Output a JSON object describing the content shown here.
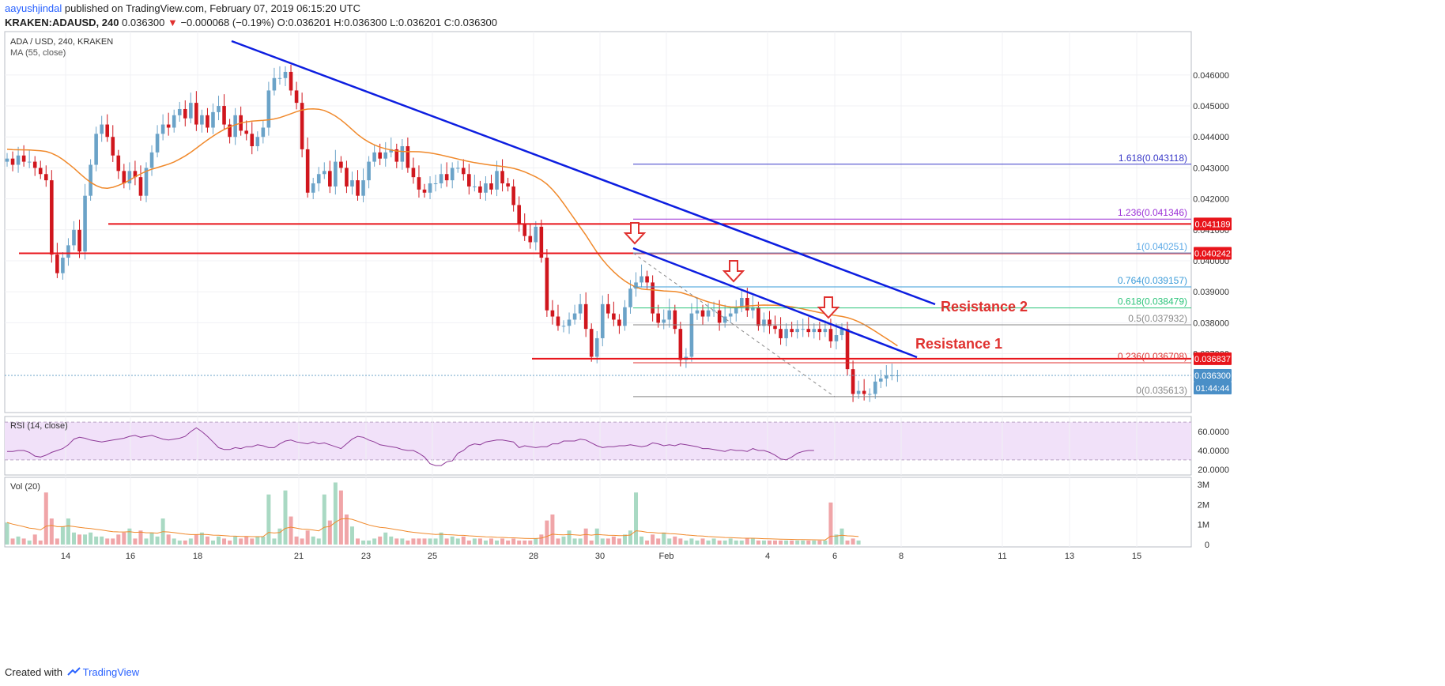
{
  "header": {
    "user": "aayushjindal",
    "published": "published on TradingView.com, February 07, 2019 06:15:20 UTC",
    "symbol": "KRAKEN:ADAUSD, 240",
    "last": "0.036300",
    "arrow": "▼",
    "change": "−0.000068 (−0.19%)",
    "o_label": "O:",
    "o_value": "0.036201",
    "h_label": "H:",
    "h_value": "0.036300",
    "l_label": "L:",
    "l_value": "0.036201",
    "c_label": "C:",
    "c_value": "0.036300"
  },
  "footer": {
    "created": "Created with",
    "brand": "TradingView"
  },
  "colors": {
    "up": "#6ba3c8",
    "down": "#d0161d",
    "ma": "#f0892b",
    "trend": "#0d1ee0",
    "hline": "#e8151b",
    "rsi": "#8e3a98",
    "rsi_band": "#f1e1f9"
  },
  "chart_data": [
    {
      "type": "candlestick",
      "title": "ADA / USD, 240, KRAKEN",
      "indicator": "MA (55, close)",
      "x_ticks": [
        "14",
        "16",
        "18",
        "21",
        "23",
        "25",
        "28",
        "30",
        "Feb",
        "4",
        "6",
        "8",
        "11",
        "13",
        "15"
      ],
      "y_ticks": [
        "0.046000",
        "0.045000",
        "0.044000",
        "0.043000",
        "0.042000",
        "0.041000",
        "0.040000",
        "0.039000",
        "0.038000",
        "0.037000"
      ],
      "ylim": [
        0.0351,
        0.0474
      ],
      "close": [
        0.0433,
        0.0431,
        0.0434,
        0.0432,
        0.0432,
        0.043,
        0.0428,
        0.0426,
        0.0402,
        0.0396,
        0.0401,
        0.0405,
        0.041,
        0.0403,
        0.0421,
        0.0431,
        0.0441,
        0.0444,
        0.044,
        0.0434,
        0.0429,
        0.0425,
        0.0429,
        0.0427,
        0.0421,
        0.043,
        0.0435,
        0.0441,
        0.0444,
        0.0443,
        0.0447,
        0.0449,
        0.0446,
        0.0451,
        0.0444,
        0.0447,
        0.0443,
        0.0448,
        0.045,
        0.0444,
        0.044,
        0.0447,
        0.0442,
        0.0441,
        0.0437,
        0.044,
        0.0443,
        0.0455,
        0.0459,
        0.0459,
        0.0461,
        0.0455,
        0.0451,
        0.0436,
        0.0422,
        0.0425,
        0.0428,
        0.0429,
        0.0424,
        0.0432,
        0.043,
        0.0424,
        0.0426,
        0.0421,
        0.0426,
        0.0432,
        0.0435,
        0.0433,
        0.0435,
        0.0436,
        0.0432,
        0.0437,
        0.043,
        0.0427,
        0.0423,
        0.0422,
        0.0425,
        0.0425,
        0.0428,
        0.0426,
        0.043,
        0.043,
        0.0428,
        0.0424,
        0.0424,
        0.0422,
        0.0425,
        0.0423,
        0.0429,
        0.0425,
        0.0424,
        0.0418,
        0.0412,
        0.0408,
        0.0406,
        0.0411,
        0.0401,
        0.0384,
        0.0382,
        0.0379,
        0.0379,
        0.0381,
        0.0383,
        0.0386,
        0.0378,
        0.0369,
        0.0375,
        0.0386,
        0.0383,
        0.0381,
        0.0379,
        0.0385,
        0.0391,
        0.0393,
        0.0395,
        0.0393,
        0.0383,
        0.038,
        0.0381,
        0.0384,
        0.0378,
        0.0368,
        0.0369,
        0.0383,
        0.0384,
        0.0382,
        0.0384,
        0.0384,
        0.038,
        0.0382,
        0.0383,
        0.0385,
        0.0388,
        0.0384,
        0.0385,
        0.0379,
        0.0381,
        0.0379,
        0.0378,
        0.0375,
        0.0378,
        0.0377,
        0.0378,
        0.0378,
        0.0377,
        0.0378,
        0.0377,
        0.0378,
        0.0374,
        0.0376,
        0.0378,
        0.0365,
        0.0357,
        0.0358,
        0.0357,
        0.0357,
        0.0361,
        0.0362,
        0.0363,
        0.0363,
        0.0363
      ]
    },
    {
      "type": "line",
      "title": "RSI (14, close)",
      "y_ticks": [
        "60.0000",
        "40.0000",
        "20.0000"
      ],
      "ylim": [
        14,
        76
      ],
      "values": [
        39,
        39,
        40,
        40,
        38,
        34,
        33,
        35,
        38,
        40,
        42,
        46,
        52,
        54,
        53,
        51,
        50,
        49,
        50,
        51,
        52,
        53,
        55,
        56,
        54,
        55,
        56,
        54,
        52,
        51,
        52,
        53,
        55,
        60,
        64,
        60,
        55,
        49,
        43,
        41,
        41,
        43,
        42,
        44,
        44,
        46,
        45,
        43,
        43,
        47,
        50,
        51,
        49,
        48,
        47,
        49,
        47,
        48,
        46,
        44,
        42,
        47,
        52,
        55,
        54,
        51,
        49,
        46,
        45,
        44,
        43,
        41,
        40,
        40,
        37,
        33,
        26,
        24,
        24,
        28,
        29,
        37,
        40,
        45,
        47,
        46,
        49,
        50,
        51,
        51,
        50,
        49,
        43,
        45,
        44,
        43,
        44,
        44,
        47,
        47,
        50,
        50,
        50,
        52,
        51,
        48,
        45,
        43,
        44,
        44,
        45,
        45,
        46,
        45,
        44,
        45,
        48,
        47,
        45,
        46,
        45,
        47,
        46,
        45,
        44,
        42,
        42,
        41,
        40,
        39,
        41,
        40,
        40,
        39,
        42,
        40,
        40,
        38,
        35,
        31,
        30,
        33,
        37,
        39,
        40,
        40
      ]
    },
    {
      "type": "bar",
      "title": "Vol (20)",
      "y_ticks": [
        "3M",
        "2M",
        "1M",
        "0"
      ],
      "ylim": [
        0,
        3000000
      ],
      "values": [
        1100000,
        300000,
        400000,
        300000,
        200000,
        500000,
        200000,
        2600000,
        1300000,
        300000,
        900000,
        1300000,
        600000,
        500000,
        500000,
        600000,
        400000,
        400000,
        300000,
        300000,
        500000,
        600000,
        800000,
        300000,
        700000,
        300000,
        600000,
        400000,
        1300000,
        500000,
        300000,
        200000,
        200000,
        300000,
        500000,
        600000,
        400000,
        200000,
        400000,
        300000,
        200000,
        400000,
        300000,
        400000,
        300000,
        400000,
        400000,
        2500000,
        300000,
        800000,
        2700000,
        1400000,
        400000,
        300000,
        700000,
        400000,
        300000,
        2500000,
        1200000,
        3100000,
        2700000,
        1500000,
        900000,
        300000,
        200000,
        200000,
        300000,
        400000,
        600000,
        400000,
        300000,
        300000,
        200000,
        300000,
        300000,
        300000,
        300000,
        300000,
        600000,
        300000,
        400000,
        300000,
        400000,
        200000,
        300000,
        300000,
        200000,
        300000,
        200000,
        300000,
        200000,
        300000,
        200000,
        200000,
        200000,
        300000,
        500000,
        1200000,
        1500000,
        300000,
        400000,
        700000,
        300000,
        300000,
        800000,
        200000,
        800000,
        300000,
        300000,
        400000,
        300000,
        500000,
        700000,
        2600000,
        400000,
        200000,
        500000,
        300000,
        600000,
        300000,
        400000,
        300000,
        200000,
        300000,
        200000,
        300000,
        200000,
        300000,
        200000,
        200000,
        300000,
        200000,
        200000,
        300000,
        300000,
        200000,
        200000,
        200000,
        200000,
        200000,
        200000,
        200000,
        200000,
        200000,
        200000,
        200000,
        200000,
        200000,
        2100000,
        500000,
        800000,
        200000,
        300000,
        200000
      ]
    }
  ],
  "axis_labels": {
    "a411": "0.041189",
    "a402": "0.040242",
    "a368": "0.036837",
    "last": "0.036300",
    "timer": "01:44:44"
  },
  "fib": [
    {
      "label": "1.618(0.043118)",
      "value": 0.043118,
      "color": "#3838c8"
    },
    {
      "label": "1.236(0.041346)",
      "value": 0.041346,
      "color": "#9b30d6"
    },
    {
      "label": "1(0.040251)",
      "value": 0.040251,
      "color": "#5aa8e6"
    },
    {
      "label": "0.764(0.039157)",
      "value": 0.039157,
      "color": "#3a9bd9"
    },
    {
      "label": "0.618(0.038479)",
      "value": 0.038479,
      "color": "#2cc47a"
    },
    {
      "label": "0.5(0.037932)",
      "value": 0.037932,
      "color": "#888888"
    },
    {
      "label": "0.236(0.036708)",
      "value": 0.036708,
      "color": "#e0312f"
    },
    {
      "label": "0(0.035613)",
      "value": 0.035613,
      "color": "#888888"
    }
  ],
  "annotations": {
    "resistance1": "Resistance 1",
    "resistance2": "Resistance 2"
  }
}
